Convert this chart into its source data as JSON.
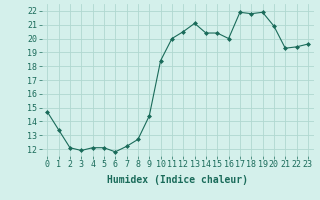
{
  "x": [
    0,
    1,
    2,
    3,
    4,
    5,
    6,
    7,
    8,
    9,
    10,
    11,
    12,
    13,
    14,
    15,
    16,
    17,
    18,
    19,
    20,
    21,
    22,
    23
  ],
  "y": [
    14.7,
    13.4,
    12.1,
    11.9,
    12.1,
    12.1,
    11.8,
    12.2,
    12.7,
    14.4,
    18.4,
    20.0,
    20.5,
    21.1,
    20.4,
    20.4,
    20.0,
    21.9,
    21.8,
    21.9,
    20.9,
    19.3,
    19.4,
    19.6
  ],
  "line_color": "#1a6b5a",
  "marker": "D",
  "marker_size": 2,
  "bg_color": "#d4f0eb",
  "grid_color": "#b0d8d0",
  "xlabel": "Humidex (Indice chaleur)",
  "xlim": [
    -0.5,
    23.5
  ],
  "ylim": [
    11.5,
    22.5
  ],
  "yticks": [
    12,
    13,
    14,
    15,
    16,
    17,
    18,
    19,
    20,
    21,
    22
  ],
  "xtick_labels": [
    "0",
    "1",
    "2",
    "3",
    "4",
    "5",
    "6",
    "7",
    "8",
    "9",
    "10",
    "11",
    "12",
    "13",
    "14",
    "15",
    "16",
    "17",
    "18",
    "19",
    "20",
    "21",
    "22",
    "23"
  ],
  "xlabel_fontsize": 7,
  "tick_fontsize": 6
}
